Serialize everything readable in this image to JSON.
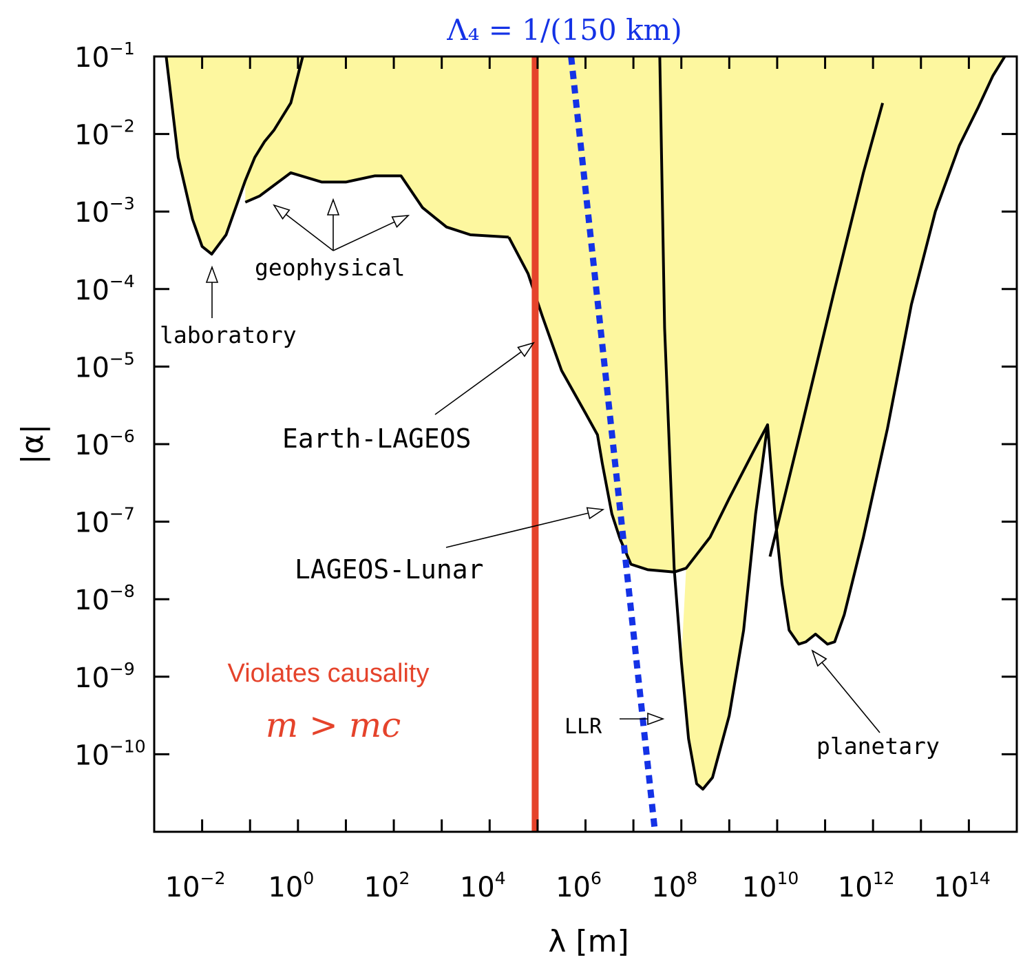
{
  "chart_data": {
    "type": "area",
    "title": "Λ₄ = 1/(150 km)",
    "xlabel": "λ  [m]",
    "ylabel": "|α|",
    "x_scale": "log10",
    "y_scale": "log10",
    "xlim_log10": [
      -3,
      15
    ],
    "ylim_log10": [
      -11,
      -1
    ],
    "x_ticks": [
      {
        "base": "10",
        "exp": "−2",
        "log": -2
      },
      {
        "base": "10",
        "exp": "0",
        "log": 0
      },
      {
        "base": "10",
        "exp": "2",
        "log": 2
      },
      {
        "base": "10",
        "exp": "4",
        "log": 4
      },
      {
        "base": "10",
        "exp": "6",
        "log": 6
      },
      {
        "base": "10",
        "exp": "8",
        "log": 8
      },
      {
        "base": "10",
        "exp": "10",
        "log": 10
      },
      {
        "base": "10",
        "exp": "12",
        "log": 12
      },
      {
        "base": "10",
        "exp": "14",
        "log": 14
      }
    ],
    "y_ticks": [
      {
        "base": "10",
        "exp": "−1",
        "log": -1
      },
      {
        "base": "10",
        "exp": "−2",
        "log": -2
      },
      {
        "base": "10",
        "exp": "−3",
        "log": -3
      },
      {
        "base": "10",
        "exp": "−4",
        "log": -4
      },
      {
        "base": "10",
        "exp": "−5",
        "log": -5
      },
      {
        "base": "10",
        "exp": "−6",
        "log": -6
      },
      {
        "base": "10",
        "exp": "−7",
        "log": -7
      },
      {
        "base": "10",
        "exp": "−8",
        "log": -8
      },
      {
        "base": "10",
        "exp": "−9",
        "log": -9
      },
      {
        "base": "10",
        "exp": "−10",
        "log": -10
      }
    ],
    "excluded_region_color": "#fdf79f",
    "curve_color": "#000000",
    "series": [
      {
        "name": "laboratory",
        "points_log10": [
          [
            -2.75,
            -1.0
          ],
          [
            -2.5,
            -2.3
          ],
          [
            -2.2,
            -3.1
          ],
          [
            -2.0,
            -3.45
          ],
          [
            -1.8,
            -3.55
          ],
          [
            -1.5,
            -3.3
          ],
          [
            -1.1,
            -2.6
          ],
          [
            -0.9,
            -2.3
          ],
          [
            -0.7,
            -2.1
          ],
          [
            -0.5,
            -1.95
          ],
          [
            -0.15,
            -1.6
          ],
          [
            0.1,
            -1.0
          ]
        ]
      },
      {
        "name": "geophysical",
        "points_log10": [
          [
            -1.1,
            -2.88
          ],
          [
            -0.8,
            -2.8
          ],
          [
            -0.15,
            -2.5
          ],
          [
            0.5,
            -2.62
          ],
          [
            1.0,
            -2.62
          ],
          [
            1.6,
            -2.54
          ],
          [
            2.15,
            -2.54
          ],
          [
            2.6,
            -2.95
          ],
          [
            3.1,
            -3.2
          ],
          [
            3.6,
            -3.3
          ],
          [
            4.4,
            -3.33
          ]
        ]
      },
      {
        "name": "Earth-LAGEOS",
        "points_log10": [
          [
            4.4,
            -3.33
          ],
          [
            4.8,
            -3.8
          ],
          [
            5.1,
            -4.35
          ],
          [
            5.5,
            -5.05
          ],
          [
            6.0,
            -5.6
          ],
          [
            6.25,
            -5.88
          ],
          [
            6.35,
            -6.25
          ],
          [
            6.55,
            -6.9
          ],
          [
            6.72,
            -7.22
          ]
        ]
      },
      {
        "name": "LAGEOS-Lunar",
        "points_log10": [
          [
            6.72,
            -7.22
          ],
          [
            6.95,
            -7.55
          ],
          [
            7.3,
            -7.62
          ],
          [
            7.85,
            -7.65
          ],
          [
            8.1,
            -7.6
          ],
          [
            8.6,
            -7.2
          ],
          [
            9.0,
            -6.7
          ],
          [
            9.5,
            -6.1
          ],
          [
            9.8,
            -5.75
          ]
        ]
      },
      {
        "name": "LLR",
        "points_log10": [
          [
            7.55,
            -1.0
          ],
          [
            7.65,
            -4.5
          ],
          [
            7.85,
            -7.6
          ],
          [
            8.0,
            -8.8
          ],
          [
            8.15,
            -9.8
          ],
          [
            8.32,
            -10.38
          ],
          [
            8.45,
            -10.45
          ],
          [
            8.65,
            -10.3
          ],
          [
            9.0,
            -9.5
          ],
          [
            9.3,
            -8.4
          ],
          [
            9.55,
            -6.9
          ],
          [
            9.8,
            -5.75
          ],
          [
            9.95,
            -6.9
          ],
          [
            10.1,
            -7.8
          ],
          [
            10.25,
            -8.4
          ],
          [
            10.45,
            -8.58
          ],
          [
            10.6,
            -8.55
          ],
          [
            10.8,
            -8.45
          ],
          [
            11.05,
            -8.58
          ],
          [
            11.2,
            -8.55
          ],
          [
            11.4,
            -8.2
          ],
          [
            11.8,
            -7.2
          ],
          [
            12.3,
            -5.8
          ],
          [
            12.8,
            -4.2
          ],
          [
            13.3,
            -3.0
          ],
          [
            13.8,
            -2.15
          ],
          [
            14.2,
            -1.65
          ],
          [
            14.5,
            -1.25
          ],
          [
            14.75,
            -1.0
          ]
        ]
      },
      {
        "name": "planetary",
        "points_log10": [
          [
            9.85,
            -7.45
          ],
          [
            10.5,
            -5.8
          ],
          [
            11.2,
            -4.0
          ],
          [
            11.8,
            -2.5
          ],
          [
            12.2,
            -1.6
          ]
        ]
      }
    ],
    "vertical_line": {
      "name": "causality-bound",
      "x_log10": 4.95,
      "color": "#e5432b"
    },
    "dotted_line": {
      "name": "lambda4-line",
      "points_log10": [
        [
          5.7,
          -1.0
        ],
        [
          7.45,
          -11.0
        ]
      ],
      "color": "#1432e6"
    },
    "annotations": [
      {
        "name": "laboratory",
        "text": "laboratory"
      },
      {
        "name": "geophysical",
        "text": "geophysical"
      },
      {
        "name": "earth-lageos",
        "text": "Earth-LAGEOS"
      },
      {
        "name": "lageos-lunar",
        "text": "LAGEOS-Lunar"
      },
      {
        "name": "llr",
        "text": "LLR"
      },
      {
        "name": "planetary",
        "text": "planetary"
      }
    ],
    "causality_label": "Violates causality",
    "causality_math": "m > mc"
  }
}
